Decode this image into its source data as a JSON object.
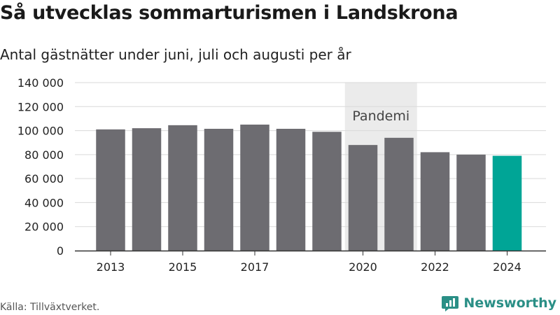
{
  "title": "Så utvecklas sommarturismen i Landskrona",
  "subtitle": "Antal gästnätter under juni, juli och augusti per år",
  "source": "Källa: Tillväxtverket.",
  "brand": "Newsworthy",
  "colors": {
    "bar": "#6d6c71",
    "highlight": "#00a596",
    "band": "#ebebeb",
    "grid": "#d9d9d9",
    "axis": "#333333",
    "brand": "#2a8f86"
  },
  "chart_data": {
    "type": "bar",
    "title": "Så utvecklas sommarturismen i Landskrona",
    "subtitle": "Antal gästnätter under juni, juli och augusti per år",
    "xlabel": "",
    "ylabel": "",
    "categories": [
      "2013",
      "2014",
      "2015",
      "2016",
      "2017",
      "2018",
      "2019",
      "2020",
      "2021",
      "2022",
      "2023",
      "2024"
    ],
    "values": [
      101000,
      102000,
      104500,
      101500,
      105000,
      101500,
      99000,
      88000,
      94000,
      82000,
      80000,
      79000
    ],
    "highlight_category": "2024",
    "ylim": [
      0,
      140000
    ],
    "y_ticks": [
      0,
      20000,
      40000,
      60000,
      80000,
      100000,
      120000,
      140000
    ],
    "y_tick_labels": [
      "0",
      "20 000",
      "40 000",
      "60 000",
      "80 000",
      "100 000",
      "120 000",
      "140 000"
    ],
    "x_tick_labels": [
      "2013",
      "2015",
      "2017",
      "2020",
      "2022",
      "2024"
    ],
    "grid": true,
    "legend": "none",
    "annotations": [
      {
        "text": "Pandemi",
        "from": "2020",
        "to": "2021"
      }
    ]
  }
}
